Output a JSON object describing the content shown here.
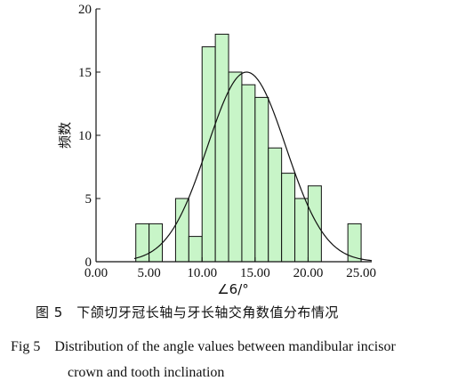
{
  "chart_data": {
    "type": "bar",
    "subtype": "histogram",
    "ylabel": "频数",
    "xlabel": "∠6/°",
    "xlim": [
      0,
      26
    ],
    "ylim": [
      0,
      20
    ],
    "xticks": [
      0,
      5,
      10,
      15,
      20,
      25
    ],
    "xtick_labels": [
      "0.00",
      "5.00",
      "10.00",
      "15.00",
      "20.00",
      "25.00"
    ],
    "yticks": [
      0,
      5,
      10,
      15,
      20
    ],
    "bin_width": 1.25,
    "bins": [
      {
        "start": 3.75,
        "end": 5.0,
        "count": 3
      },
      {
        "start": 5.0,
        "end": 6.25,
        "count": 3
      },
      {
        "start": 7.5,
        "end": 8.75,
        "count": 5
      },
      {
        "start": 8.75,
        "end": 10.0,
        "count": 2
      },
      {
        "start": 10.0,
        "end": 11.25,
        "count": 17
      },
      {
        "start": 11.25,
        "end": 12.5,
        "count": 18
      },
      {
        "start": 12.5,
        "end": 13.75,
        "count": 15
      },
      {
        "start": 13.75,
        "end": 15.0,
        "count": 14
      },
      {
        "start": 15.0,
        "end": 16.25,
        "count": 13
      },
      {
        "start": 16.25,
        "end": 17.5,
        "count": 9
      },
      {
        "start": 17.5,
        "end": 18.75,
        "count": 7
      },
      {
        "start": 18.75,
        "end": 20.0,
        "count": 5
      },
      {
        "start": 20.0,
        "end": 21.25,
        "count": 6
      },
      {
        "start": 23.75,
        "end": 25.0,
        "count": 3
      }
    ],
    "normal_curve": {
      "peak": 15,
      "mean": 14.2,
      "sd": 3.7
    },
    "bar_color": "#c8f5c8",
    "grid": false
  },
  "caption": {
    "cn": "图 5　下颌切牙冠长轴与牙长轴交角数值分布情况",
    "en_line1": "Fig 5　Distribution of the angle values between mandibular incisor",
    "en_line2": "crown and tooth inclination"
  }
}
